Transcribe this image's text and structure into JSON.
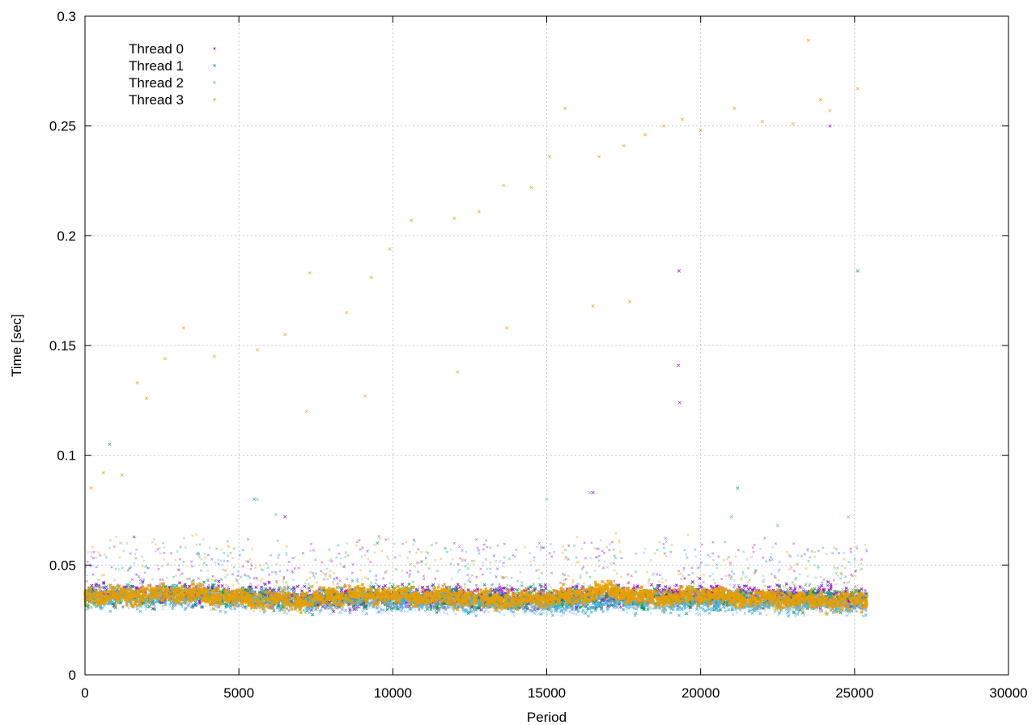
{
  "chart_data": {
    "type": "scatter",
    "xlabel": "Period",
    "ylabel": "Time [sec]",
    "xlim": [
      0,
      30000
    ],
    "ylim": [
      0,
      0.3
    ],
    "x_ticks": [
      0,
      5000,
      10000,
      15000,
      20000,
      25000,
      30000
    ],
    "y_ticks": [
      0,
      0.05,
      0.1,
      0.15,
      0.2,
      0.25,
      0.3
    ],
    "x_tick_labels": [
      "0",
      "5000",
      "10000",
      "15000",
      "20000",
      "25000",
      "30000"
    ],
    "y_tick_labels": [
      "0",
      "0.05",
      "0.1",
      "0.15",
      "0.2",
      "0.25",
      "0.3"
    ],
    "grid": true,
    "legend_position": "top-left",
    "point_marker": "x",
    "x_range_of_data": [
      0,
      25400
    ],
    "series": [
      {
        "name": "Thread 0",
        "color": "#9400d3",
        "baseline_profile": [
          [
            0,
            0.0365
          ],
          [
            3000,
            0.037
          ],
          [
            7000,
            0.035
          ],
          [
            10000,
            0.0355
          ],
          [
            15000,
            0.035
          ],
          [
            19000,
            0.0365
          ],
          [
            25400,
            0.0355
          ]
        ],
        "outliers": [
          [
            19300,
            0.184
          ],
          [
            19280,
            0.141
          ],
          [
            19320,
            0.124
          ],
          [
            24200,
            0.25
          ],
          [
            16500,
            0.083
          ],
          [
            6500,
            0.072
          ]
        ]
      },
      {
        "name": "Thread 1",
        "color": "#009e73",
        "baseline_profile": [
          [
            0,
            0.036
          ],
          [
            3000,
            0.0365
          ],
          [
            7000,
            0.0345
          ],
          [
            10000,
            0.035
          ],
          [
            15000,
            0.034
          ],
          [
            19000,
            0.035
          ],
          [
            25400,
            0.034
          ]
        ],
        "outliers": [
          [
            800,
            0.105
          ],
          [
            5500,
            0.08
          ],
          [
            25100,
            0.184
          ],
          [
            21200,
            0.085
          ],
          [
            9500,
            0.06
          ]
        ]
      },
      {
        "name": "Thread 2",
        "color": "#56b4e9",
        "baseline_profile": [
          [
            0,
            0.0355
          ],
          [
            3000,
            0.0355
          ],
          [
            7000,
            0.0335
          ],
          [
            10000,
            0.034
          ],
          [
            15000,
            0.0325
          ],
          [
            19000,
            0.0335
          ],
          [
            25400,
            0.032
          ]
        ],
        "outliers": [
          [
            5600,
            0.08
          ],
          [
            6200,
            0.073
          ],
          [
            15000,
            0.08
          ],
          [
            16400,
            0.083
          ],
          [
            21000,
            0.072
          ],
          [
            22500,
            0.068
          ],
          [
            24800,
            0.072
          ]
        ]
      },
      {
        "name": "Thread 3",
        "color": "#e69f00",
        "baseline_profile": [
          [
            0,
            0.036
          ],
          [
            1500,
            0.0365
          ],
          [
            3000,
            0.0375
          ],
          [
            5000,
            0.035
          ],
          [
            7000,
            0.0335
          ],
          [
            8000,
            0.036
          ],
          [
            10000,
            0.0365
          ],
          [
            12000,
            0.0355
          ],
          [
            14000,
            0.034
          ],
          [
            15500,
            0.0355
          ],
          [
            17000,
            0.0385
          ],
          [
            18500,
            0.0345
          ],
          [
            20000,
            0.0365
          ],
          [
            22000,
            0.0345
          ],
          [
            25400,
            0.0335
          ]
        ],
        "outliers": [
          [
            200,
            0.085
          ],
          [
            600,
            0.092
          ],
          [
            1200,
            0.091
          ],
          [
            1700,
            0.133
          ],
          [
            2000,
            0.126
          ],
          [
            2600,
            0.144
          ],
          [
            3200,
            0.158
          ],
          [
            4200,
            0.145
          ],
          [
            5600,
            0.148
          ],
          [
            6500,
            0.155
          ],
          [
            7300,
            0.183
          ],
          [
            8500,
            0.165
          ],
          [
            9300,
            0.181
          ],
          [
            9900,
            0.194
          ],
          [
            10600,
            0.207
          ],
          [
            12000,
            0.208
          ],
          [
            12800,
            0.211
          ],
          [
            13600,
            0.223
          ],
          [
            14500,
            0.222
          ],
          [
            15100,
            0.236
          ],
          [
            15600,
            0.258
          ],
          [
            16700,
            0.236
          ],
          [
            17500,
            0.241
          ],
          [
            18200,
            0.246
          ],
          [
            18800,
            0.25
          ],
          [
            19400,
            0.253
          ],
          [
            20000,
            0.248
          ],
          [
            21100,
            0.258
          ],
          [
            22000,
            0.252
          ],
          [
            23000,
            0.251
          ],
          [
            23500,
            0.289
          ],
          [
            23900,
            0.262
          ],
          [
            24200,
            0.257
          ],
          [
            25100,
            0.267
          ],
          [
            7200,
            0.12
          ],
          [
            9100,
            0.127
          ],
          [
            13700,
            0.158
          ],
          [
            12100,
            0.138
          ],
          [
            16500,
            0.168
          ],
          [
            17700,
            0.17
          ]
        ]
      }
    ]
  }
}
